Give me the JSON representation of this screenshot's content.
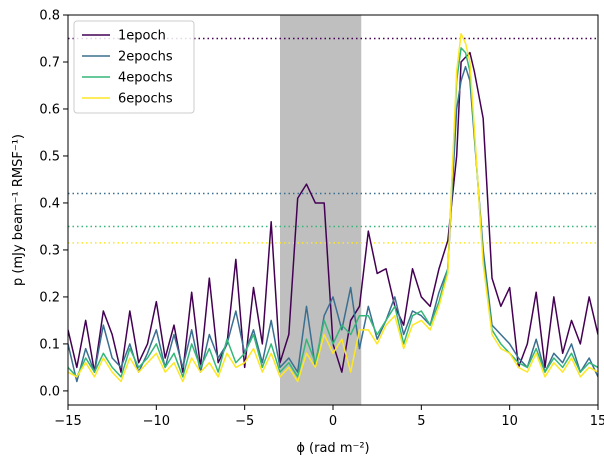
{
  "chart_data": {
    "type": "line",
    "title": "",
    "xlabel": "ϕ (rad m⁻²)",
    "ylabel": "p (mJy beam⁻¹ RMSF⁻¹)",
    "xlim": [
      -15,
      15
    ],
    "ylim": [
      -0.03,
      0.8
    ],
    "xticks": [
      -15,
      -10,
      -5,
      0,
      5,
      10,
      15
    ],
    "xtick_labels": [
      "−15",
      "−10",
      "−5",
      "0",
      "5",
      "10",
      "15"
    ],
    "yticks": [
      0.0,
      0.1,
      0.2,
      0.3,
      0.4,
      0.5,
      0.6,
      0.7,
      0.8
    ],
    "ytick_labels": [
      "0.0",
      "0.1",
      "0.2",
      "0.3",
      "0.4",
      "0.5",
      "0.6",
      "0.7",
      "0.8"
    ],
    "grid": false,
    "legend_position": "top-left",
    "shaded_region": {
      "x": [
        -3.0,
        1.6
      ],
      "color": "#bfbfbf"
    },
    "series": [
      {
        "name": "1epoch",
        "color": "#440154",
        "threshold": 0.75,
        "x": [
          -15,
          -14.5,
          -14,
          -13.5,
          -13,
          -12.5,
          -12,
          -11.5,
          -11,
          -10.5,
          -10,
          -9.5,
          -9,
          -8.5,
          -8,
          -7.5,
          -7,
          -6.5,
          -6,
          -5.5,
          -5,
          -4.5,
          -4,
          -3.5,
          -3,
          -2.5,
          -2,
          -1.5,
          -1,
          -0.5,
          0,
          0.5,
          1,
          1.5,
          2,
          2.5,
          3,
          3.5,
          4,
          4.5,
          5,
          5.5,
          6,
          6.5,
          7,
          7.25,
          7.5,
          7.75,
          8,
          8.5,
          9,
          9.5,
          10,
          10.5,
          11,
          11.5,
          12,
          12.5,
          13,
          13.5,
          14,
          14.5,
          15
        ],
        "y": [
          0.13,
          0.05,
          0.15,
          0.04,
          0.17,
          0.12,
          0.04,
          0.17,
          0.06,
          0.1,
          0.19,
          0.07,
          0.14,
          0.04,
          0.21,
          0.05,
          0.24,
          0.06,
          0.1,
          0.28,
          0.05,
          0.22,
          0.1,
          0.36,
          0.06,
          0.12,
          0.41,
          0.44,
          0.4,
          0.4,
          0.1,
          0.04,
          0.15,
          0.18,
          0.34,
          0.25,
          0.26,
          0.18,
          0.14,
          0.26,
          0.2,
          0.18,
          0.26,
          0.32,
          0.5,
          0.7,
          0.71,
          0.72,
          0.68,
          0.58,
          0.24,
          0.18,
          0.22,
          0.05,
          0.1,
          0.21,
          0.05,
          0.2,
          0.08,
          0.15,
          0.1,
          0.2,
          0.12
        ]
      },
      {
        "name": "2epochs",
        "color": "#3b6f91",
        "threshold": 0.42,
        "x": [
          -15,
          -14.5,
          -14,
          -13.5,
          -13,
          -12.5,
          -12,
          -11.5,
          -11,
          -10.5,
          -10,
          -9.5,
          -9,
          -8.5,
          -8,
          -7.5,
          -7,
          -6.5,
          -6,
          -5.5,
          -5,
          -4.5,
          -4,
          -3.5,
          -3,
          -2.5,
          -2,
          -1.5,
          -1,
          -0.5,
          0,
          0.5,
          1,
          1.5,
          2,
          2.5,
          3,
          3.5,
          4,
          4.5,
          5,
          5.5,
          6,
          6.5,
          7,
          7.25,
          7.5,
          7.75,
          8,
          8.5,
          9,
          9.5,
          10,
          10.5,
          11,
          11.5,
          12,
          12.5,
          13,
          13.5,
          14,
          14.5,
          15
        ],
        "y": [
          0.1,
          0.02,
          0.09,
          0.04,
          0.14,
          0.07,
          0.05,
          0.1,
          0.04,
          0.08,
          0.13,
          0.05,
          0.12,
          0.05,
          0.13,
          0.04,
          0.12,
          0.07,
          0.1,
          0.17,
          0.08,
          0.13,
          0.06,
          0.15,
          0.05,
          0.07,
          0.04,
          0.18,
          0.05,
          0.16,
          0.2,
          0.13,
          0.22,
          0.09,
          0.18,
          0.11,
          0.15,
          0.2,
          0.12,
          0.17,
          0.16,
          0.14,
          0.21,
          0.26,
          0.6,
          0.66,
          0.69,
          0.66,
          0.54,
          0.3,
          0.14,
          0.12,
          0.1,
          0.07,
          0.05,
          0.11,
          0.04,
          0.08,
          0.06,
          0.1,
          0.04,
          0.07,
          0.03
        ]
      },
      {
        "name": "4epochs",
        "color": "#35b779",
        "threshold": 0.35,
        "x": [
          -15,
          -14.5,
          -14,
          -13.5,
          -13,
          -12.5,
          -12,
          -11.5,
          -11,
          -10.5,
          -10,
          -9.5,
          -9,
          -8.5,
          -8,
          -7.5,
          -7,
          -6.5,
          -6,
          -5.5,
          -5,
          -4.5,
          -4,
          -3.5,
          -3,
          -2.5,
          -2,
          -1.5,
          -1,
          -0.5,
          0,
          0.5,
          1,
          1.5,
          2,
          2.5,
          3,
          3.5,
          4,
          4.5,
          5,
          5.5,
          6,
          6.5,
          7,
          7.25,
          7.5,
          7.75,
          8,
          8.5,
          9,
          9.5,
          10,
          10.5,
          11,
          11.5,
          12,
          12.5,
          13,
          13.5,
          14,
          14.5,
          15
        ],
        "y": [
          0.05,
          0.03,
          0.07,
          0.04,
          0.08,
          0.05,
          0.03,
          0.09,
          0.05,
          0.07,
          0.1,
          0.05,
          0.08,
          0.03,
          0.1,
          0.05,
          0.09,
          0.04,
          0.11,
          0.06,
          0.08,
          0.12,
          0.05,
          0.1,
          0.04,
          0.06,
          0.03,
          0.11,
          0.06,
          0.15,
          0.1,
          0.14,
          0.12,
          0.16,
          0.16,
          0.12,
          0.15,
          0.18,
          0.1,
          0.16,
          0.17,
          0.14,
          0.19,
          0.26,
          0.66,
          0.73,
          0.72,
          0.68,
          0.55,
          0.28,
          0.13,
          0.1,
          0.08,
          0.06,
          0.05,
          0.09,
          0.04,
          0.07,
          0.05,
          0.08,
          0.04,
          0.06,
          0.05
        ]
      },
      {
        "name": "6epochs",
        "color": "#fde725",
        "threshold": 0.315,
        "x": [
          -15,
          -14.5,
          -14,
          -13.5,
          -13,
          -12.5,
          -12,
          -11.5,
          -11,
          -10.5,
          -10,
          -9.5,
          -9,
          -8.5,
          -8,
          -7.5,
          -7,
          -6.5,
          -6,
          -5.5,
          -5,
          -4.5,
          -4,
          -3.5,
          -3,
          -2.5,
          -2,
          -1.5,
          -1,
          -0.5,
          0,
          0.5,
          1,
          1.5,
          2,
          2.5,
          3,
          3.5,
          4,
          4.5,
          5,
          5.5,
          6,
          6.5,
          7,
          7.25,
          7.5,
          7.75,
          8,
          8.5,
          9,
          9.5,
          10,
          10.5,
          11,
          11.5,
          12,
          12.5,
          13,
          13.5,
          14,
          14.5,
          15
        ],
        "y": [
          0.04,
          0.03,
          0.06,
          0.03,
          0.07,
          0.04,
          0.02,
          0.07,
          0.04,
          0.06,
          0.08,
          0.04,
          0.06,
          0.02,
          0.07,
          0.04,
          0.06,
          0.03,
          0.08,
          0.05,
          0.06,
          0.09,
          0.04,
          0.08,
          0.03,
          0.05,
          0.02,
          0.08,
          0.05,
          0.12,
          0.08,
          0.11,
          0.04,
          0.13,
          0.13,
          0.1,
          0.14,
          0.16,
          0.09,
          0.14,
          0.15,
          0.13,
          0.18,
          0.25,
          0.68,
          0.76,
          0.74,
          0.7,
          0.56,
          0.27,
          0.12,
          0.09,
          0.08,
          0.05,
          0.04,
          0.08,
          0.03,
          0.06,
          0.04,
          0.07,
          0.03,
          0.05,
          0.04
        ]
      }
    ]
  }
}
